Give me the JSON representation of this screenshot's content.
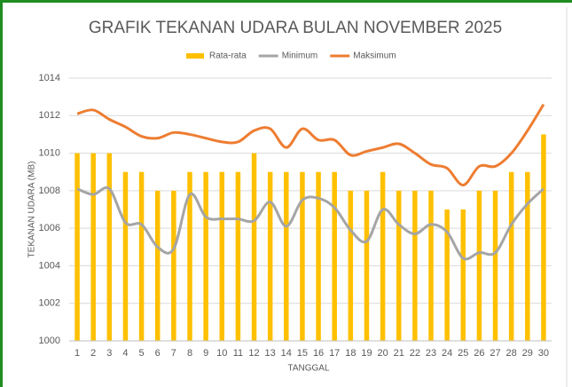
{
  "chart_data": {
    "type": "bar-line",
    "title": "GRAFIK TEKANAN UDARA BULAN NOVEMBER 2025",
    "x_label": "TANGGAL",
    "y_label": "TEKANAN UDARA (MB)",
    "categories": [
      "1",
      "2",
      "3",
      "4",
      "5",
      "6",
      "7",
      "8",
      "9",
      "10",
      "11",
      "12",
      "13",
      "14",
      "15",
      "16",
      "17",
      "18",
      "19",
      "20",
      "21",
      "22",
      "23",
      "24",
      "25",
      "26",
      "27",
      "28",
      "29",
      "30"
    ],
    "series": [
      {
        "name": "Rata-rata",
        "kind": "bar",
        "color": "#ffc000",
        "values": [
          1010,
          1010,
          1010,
          1009,
          1009,
          1008,
          1008,
          1009,
          1009,
          1009,
          1009,
          1010,
          1009,
          1009,
          1009,
          1009,
          1009,
          1008,
          1008,
          1009,
          1008,
          1008,
          1008,
          1007,
          1007,
          1008,
          1008,
          1009,
          1009,
          1011
        ]
      },
      {
        "name": "Minimum",
        "kind": "line",
        "color": "#a5a5a5",
        "values": [
          1008.1,
          1007.8,
          1008.1,
          1006.3,
          1006.2,
          1005.0,
          1004.9,
          1007.8,
          1006.6,
          1006.5,
          1006.5,
          1006.4,
          1007.4,
          1006.1,
          1007.5,
          1007.6,
          1007.1,
          1005.9,
          1005.3,
          1007.0,
          1006.2,
          1005.7,
          1006.2,
          1005.8,
          1004.4,
          1004.7,
          1004.7,
          1006.2,
          1007.3,
          1008.1
        ]
      },
      {
        "name": "Maksimum",
        "kind": "line",
        "color": "#ed7d31",
        "values": [
          1012.1,
          1012.3,
          1011.8,
          1011.4,
          1010.9,
          1010.8,
          1011.1,
          1011.0,
          1010.8,
          1010.6,
          1010.6,
          1011.2,
          1011.3,
          1010.3,
          1011.3,
          1010.7,
          1010.7,
          1009.9,
          1010.1,
          1010.3,
          1010.5,
          1010.0,
          1009.4,
          1009.2,
          1008.3,
          1009.3,
          1009.3,
          1010.0,
          1011.2,
          1012.6
        ]
      }
    ],
    "ylim": [
      1000,
      1014
    ],
    "yticks": [
      1000,
      1002,
      1004,
      1006,
      1008,
      1010,
      1012,
      1014
    ],
    "grid": true,
    "legend": "top",
    "smooth": true
  }
}
